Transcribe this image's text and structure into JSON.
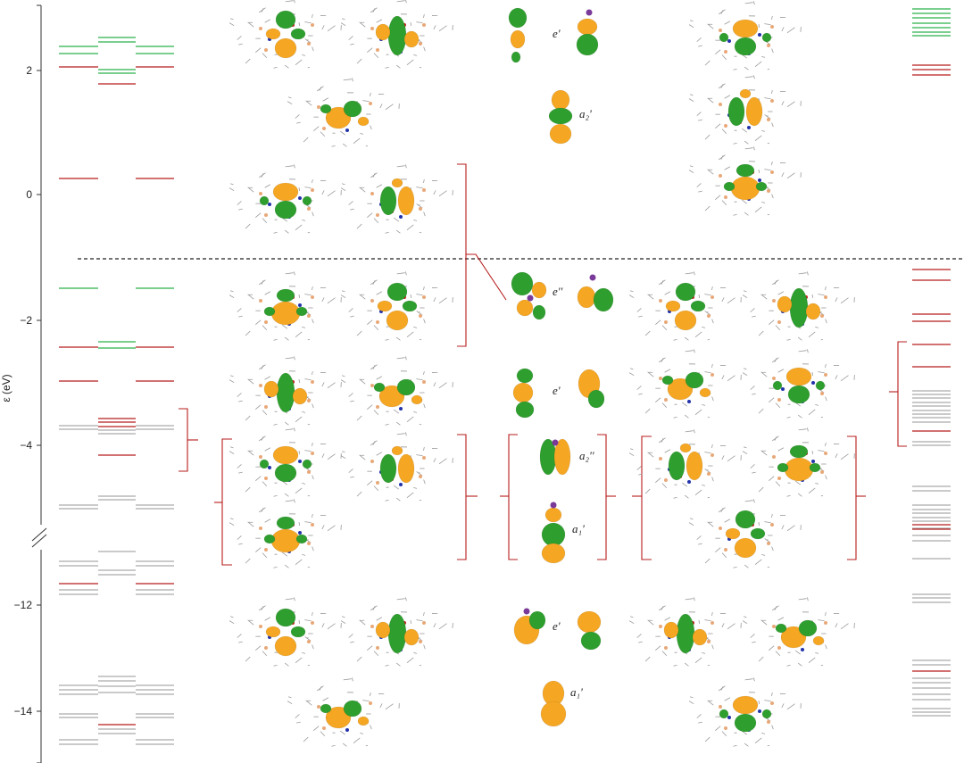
{
  "axis": {
    "ylabel": "ε (eV)",
    "ticks": [
      {
        "value": 2,
        "label": "2"
      },
      {
        "value": 0,
        "label": "0"
      },
      {
        "value": -2,
        "label": "−2"
      },
      {
        "value": -4,
        "label": "−4"
      },
      {
        "value": -12,
        "label": "−12"
      },
      {
        "value": -14,
        "label": "−14"
      }
    ],
    "break_between": [
      -4,
      -12
    ]
  },
  "colors": {
    "red": "#b71c1c",
    "green": "#2bb04a",
    "gray": "#aaaaaa",
    "lobe_green": "#2e9e2e",
    "lobe_orange": "#f5a623",
    "bracket": "#b71c1c"
  },
  "symmetry_labels": [
    {
      "id": "sym-e-prime-top",
      "text": "e'"
    },
    {
      "id": "sym-a2-prime",
      "text": "a₂'"
    },
    {
      "id": "sym-e-double-prime",
      "text": "e''"
    },
    {
      "id": "sym-e-prime-mid",
      "text": "e'"
    },
    {
      "id": "sym-a2-double-prime",
      "text": "a₂''"
    },
    {
      "id": "sym-a1-prime-mid",
      "text": "a₁'"
    },
    {
      "id": "sym-e-prime-low",
      "text": "e'"
    },
    {
      "id": "sym-a1-prime-low",
      "text": "a₁'"
    }
  ]
}
